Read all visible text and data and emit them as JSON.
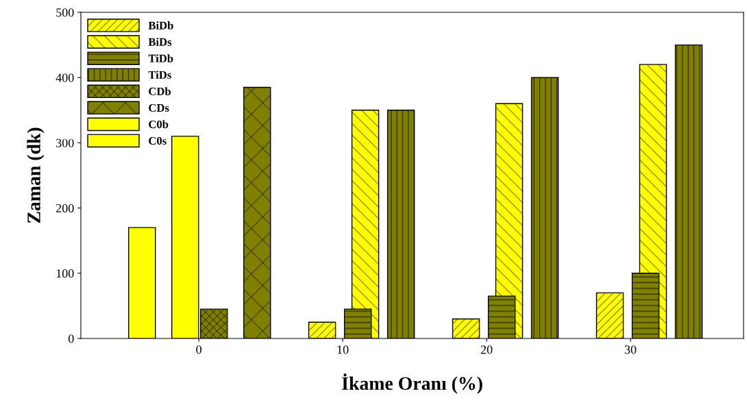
{
  "chart_data": {
    "type": "bar",
    "xlabel": "İkame Oranı (%)",
    "ylabel": "Zaman (dk)",
    "categories": [
      "0",
      "10",
      "20",
      "30"
    ],
    "series": [
      {
        "name": "BiDb",
        "color": "#ffff00",
        "values": [
          null,
          25,
          30,
          70
        ]
      },
      {
        "name": "BiDs",
        "color": "#ffff00",
        "values": [
          null,
          350,
          360,
          420
        ]
      },
      {
        "name": "TiDb",
        "color": "#808000",
        "values": [
          null,
          45,
          65,
          100
        ]
      },
      {
        "name": "TiDs",
        "color": "#808000",
        "values": [
          null,
          350,
          400,
          450
        ]
      },
      {
        "name": "CDb",
        "color": "#808000",
        "values": [
          45,
          null,
          null,
          null
        ]
      },
      {
        "name": "CDs",
        "color": "#808000",
        "values": [
          385,
          null,
          null,
          null
        ]
      },
      {
        "name": "C0b",
        "color": "#ffff00",
        "values": [
          170,
          null,
          null,
          null
        ]
      },
      {
        "name": "C0s",
        "color": "#ffff00",
        "values": [
          310,
          null,
          null,
          null
        ]
      }
    ],
    "ylim": [
      0,
      500
    ],
    "yticks": [
      0,
      100,
      200,
      300,
      400,
      500
    ],
    "grid": false,
    "legend": "top left"
  }
}
